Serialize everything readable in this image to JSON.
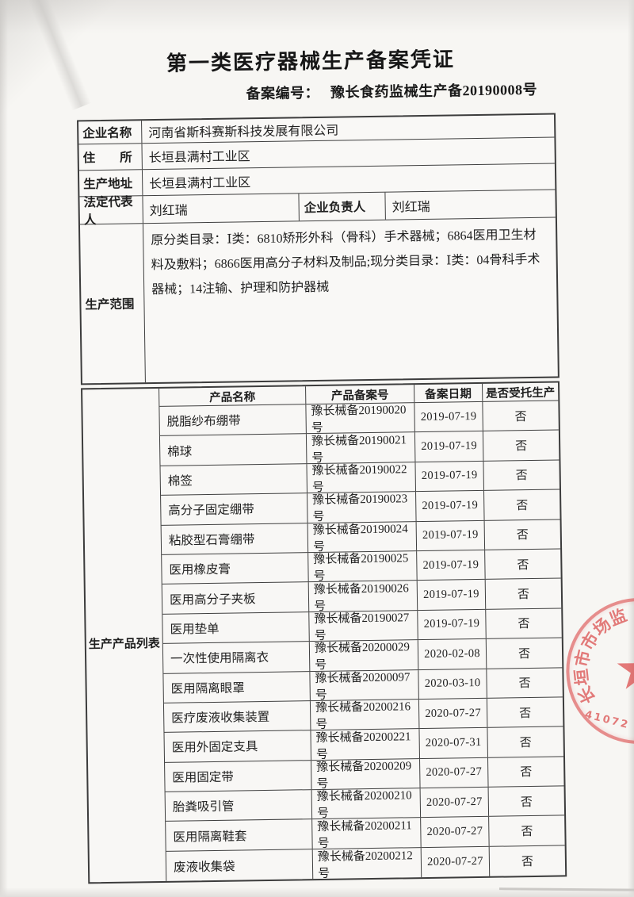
{
  "certificate": {
    "title": "第一类医疗器械生产备案凭证",
    "filing_no_label": "备案编号：",
    "filing_no": "豫长食药监械生产备20190008号"
  },
  "info": {
    "rows": [
      {
        "label": "企业名称",
        "value": "河南省斯科赛斯科技发展有限公司"
      },
      {
        "label": "住　　所",
        "value": "长垣县满村工业区"
      },
      {
        "label": "生产地址",
        "value": "长垣县满村工业区"
      },
      {
        "label": "法定代表人",
        "value": "刘红瑞",
        "label2": "企业负责人",
        "value2": "刘红瑞"
      },
      {
        "label": "生产范围",
        "value": "原分类目录：Ⅰ类：6810矫形外科（骨科）手术器械；6864医用卫生材料及敷料；6866医用高分子材料及制品;现分类目录：Ⅰ类：04骨科手术器械；14注输、护理和防护器械"
      }
    ]
  },
  "products": {
    "section_label": "生产产品列表",
    "columns": [
      "产品名称",
      "产品备案号",
      "备案日期",
      "是否受托生产"
    ],
    "rows": [
      [
        "脱脂纱布绷带",
        "豫长械备20190020号",
        "2019-07-19",
        "否"
      ],
      [
        "棉球",
        "豫长械备20190021号",
        "2019-07-19",
        "否"
      ],
      [
        "棉签",
        "豫长械备20190022号",
        "2019-07-19",
        "否"
      ],
      [
        "高分子固定绷带",
        "豫长械备20190023号",
        "2019-07-19",
        "否"
      ],
      [
        "粘胶型石膏绷带",
        "豫长械备20190024号",
        "2019-07-19",
        "否"
      ],
      [
        "医用橡皮膏",
        "豫长械备20190025号",
        "2019-07-19",
        "否"
      ],
      [
        "医用高分子夹板",
        "豫长械备20190026号",
        "2019-07-19",
        "否"
      ],
      [
        "医用垫单",
        "豫长械备20190027号",
        "2019-07-19",
        "否"
      ],
      [
        "一次性使用隔离衣",
        "豫长械备20200029号",
        "2020-02-08",
        "否"
      ],
      [
        "医用隔离眼罩",
        "豫长械备20200097号",
        "2020-03-10",
        "否"
      ],
      [
        "医疗废液收集装置",
        "豫长械备20200216号",
        "2020-07-27",
        "否"
      ],
      [
        "医用外固定支具",
        "豫长械备20200221号",
        "2020-07-31",
        "否"
      ],
      [
        "医用固定带",
        "豫长械备20200209号",
        "2020-07-27",
        "否"
      ],
      [
        "胎粪吸引管",
        "豫长械备20200210号",
        "2020-07-27",
        "否"
      ],
      [
        "医用隔离鞋套",
        "豫长械备20200211号",
        "2020-07-27",
        "否"
      ],
      [
        "废液收集袋",
        "豫长械备20200212号",
        "2020-07-27",
        "否"
      ]
    ]
  },
  "stamp": {
    "arc_text": "长垣市市场监",
    "number": "41072",
    "color": "#db5050"
  }
}
